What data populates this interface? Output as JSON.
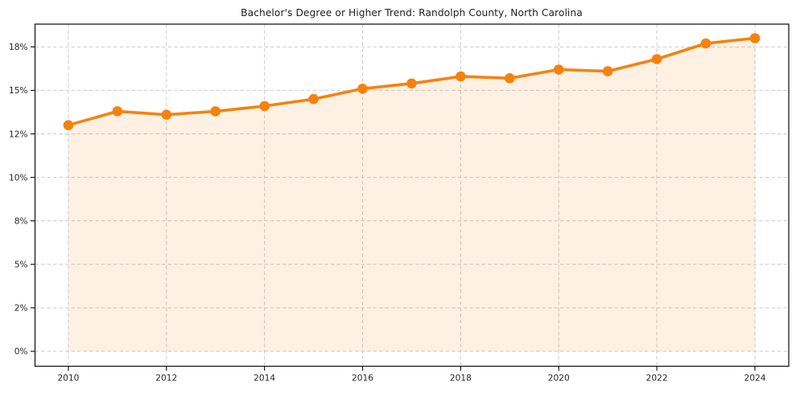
{
  "page": {
    "background_color": "#ffffff"
  },
  "chart_data": {
    "type": "line",
    "title": "Bachelor's Degree or Higher Trend: Randolph County, North Carolina",
    "x": [
      2010,
      2011,
      2012,
      2013,
      2014,
      2015,
      2016,
      2017,
      2018,
      2019,
      2020,
      2021,
      2022,
      2023,
      2024
    ],
    "values": [
      13.0,
      13.8,
      13.6,
      13.8,
      14.1,
      14.5,
      15.1,
      15.4,
      15.8,
      15.7,
      16.2,
      16.1,
      16.8,
      17.7,
      18.0
    ],
    "unit": "%",
    "x_tick_values": [
      2010,
      2012,
      2014,
      2016,
      2018,
      2020,
      2022,
      2024
    ],
    "x_tick_labels": [
      "2010",
      "2012",
      "2014",
      "2016",
      "2018",
      "2020",
      "2022",
      "2024"
    ],
    "y_tick_values": [
      0,
      2.5,
      5,
      7.5,
      10,
      12.5,
      15,
      17.5
    ],
    "y_tick_labels": [
      "0%",
      "2%",
      "5%",
      "8%",
      "10%",
      "12%",
      "15%",
      "18%"
    ],
    "xlim": [
      2009.32,
      2024.69
    ],
    "ylim": [
      -0.86,
      18.81
    ],
    "grid": true,
    "grid_style": "dashed",
    "legend_position": "none",
    "marker": "circle",
    "area_fill": true,
    "colors": {
      "line": "#f6820d",
      "marker": "#f6820d",
      "area_fill": "rgba(246,130,13,0.11)",
      "grid": "#cbcbcb",
      "axis": "#1a1a1a",
      "tick_labels": "#262626",
      "title": "#1f1f1f"
    }
  }
}
